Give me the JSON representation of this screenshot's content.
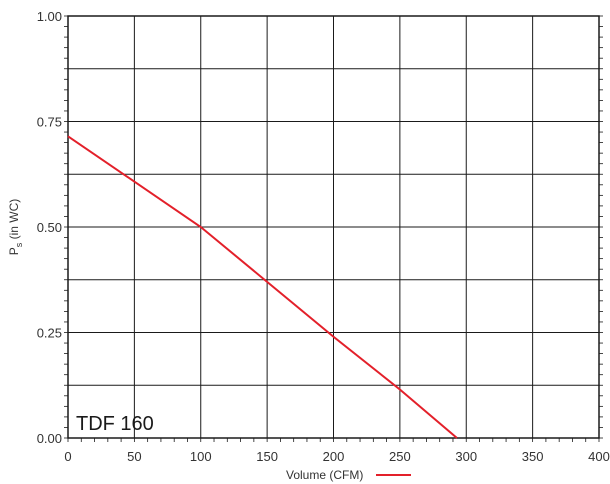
{
  "chart_data": {
    "type": "line",
    "title": "",
    "annotation": "TDF 160",
    "xlabel": "Volume (CFM)",
    "ylabel_main": "P",
    "ylabel_sub": "s",
    "ylabel_rest": " (in WC)",
    "xlim": [
      0,
      400
    ],
    "ylim": [
      0,
      1.0
    ],
    "x_ticks": [
      0,
      50,
      100,
      150,
      200,
      250,
      300,
      350,
      400
    ],
    "x_tick_labels": [
      "0",
      "50",
      "100",
      "150",
      "200",
      "250",
      "300",
      "350",
      "400"
    ],
    "y_ticks": [
      0,
      0.25,
      0.5,
      0.75,
      1.0
    ],
    "y_tick_labels": [
      "0.00",
      "0.25",
      "0.50",
      "0.75",
      "1.00"
    ],
    "y_grid": [
      0,
      0.125,
      0.25,
      0.375,
      0.5,
      0.625,
      0.75,
      0.875,
      1.0
    ],
    "grid": true,
    "legend": "below-x-axis",
    "series": [
      {
        "color": "#e3202a",
        "x": [
          0,
          100,
          150,
          200,
          250,
          293
        ],
        "y": [
          0.715,
          0.5,
          0.37,
          0.24,
          0.115,
          0.0
        ]
      }
    ]
  }
}
